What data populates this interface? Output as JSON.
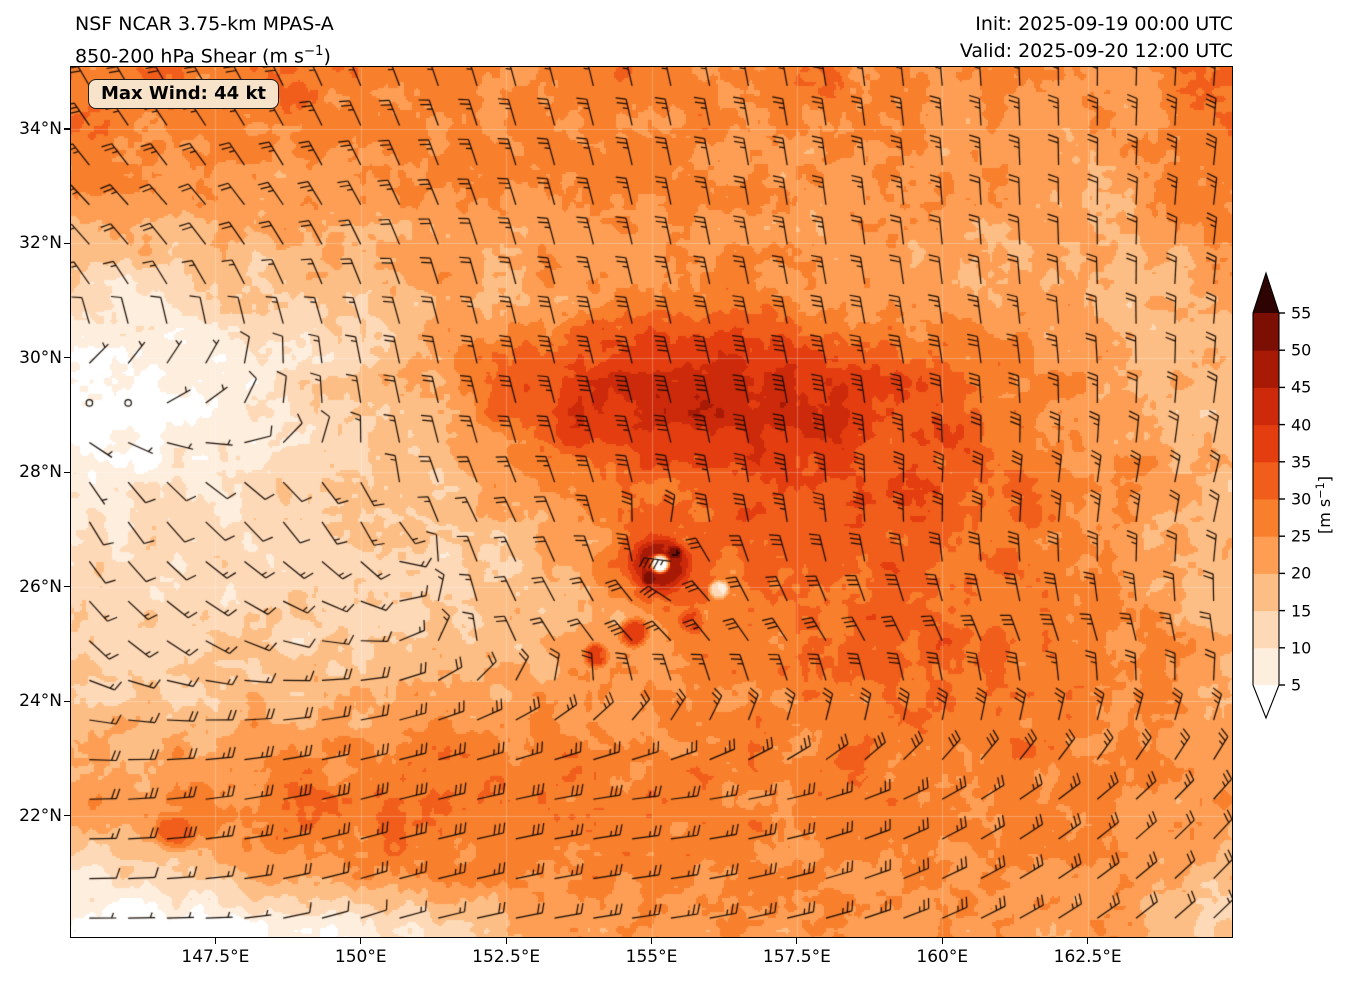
{
  "header": {
    "title_line1": "NSF NCAR 3.75-km MPAS-A",
    "title_line2_prefix": "850-200 hPa Shear (m s",
    "title_line2_sup": "−1",
    "title_line2_suffix": ")",
    "init_label": "Init: 2025-09-19 00:00 UTC",
    "valid_label": "Valid: 2025-09-20 12:00 UTC"
  },
  "badge": {
    "text": "Max Wind: 44 kt"
  },
  "chart_data": {
    "type": "heatmap",
    "subtype": "wind-shear-map-with-barbs",
    "title": "NSF NCAR 3.75-km MPAS-A 850-200 hPa Shear (m s−1)",
    "units": "m s−1",
    "init_time": "2025-09-19 00:00 UTC",
    "valid_time": "2025-09-20 12:00 UTC",
    "max_wind_kt": 44,
    "lon_range": [
      145.0,
      165.0
    ],
    "lat_range": [
      19.86,
      35.1
    ],
    "grid_on": true,
    "x_ticks": [
      {
        "label": "147.5°E",
        "lon": 147.5
      },
      {
        "label": "150°E",
        "lon": 150.0
      },
      {
        "label": "152.5°E",
        "lon": 152.5
      },
      {
        "label": "155°E",
        "lon": 155.0
      },
      {
        "label": "157.5°E",
        "lon": 157.5
      },
      {
        "label": "160°E",
        "lon": 160.0
      },
      {
        "label": "162.5°E",
        "lon": 162.5
      }
    ],
    "y_ticks": [
      {
        "label": "34°N",
        "lat": 34
      },
      {
        "label": "32°N",
        "lat": 32
      },
      {
        "label": "30°N",
        "lat": 30
      },
      {
        "label": "28°N",
        "lat": 28
      },
      {
        "label": "26°N",
        "lat": 26
      },
      {
        "label": "24°N",
        "lat": 24
      },
      {
        "label": "22°N",
        "lat": 22
      }
    ],
    "colorbar": {
      "ticks": [
        5,
        10,
        15,
        20,
        25,
        30,
        35,
        40,
        45,
        50,
        55
      ],
      "label_prefix": "[m s",
      "label_sup": "−1",
      "label_suffix": "]",
      "under_color": "#ffffff",
      "over_color": "#2e0402",
      "segment_colors": [
        "#fdeede",
        "#fdd9b8",
        "#fdbe85",
        "#fd9e54",
        "#f87f2c",
        "#f15d1b",
        "#e33d10",
        "#cc2a0a",
        "#a81a06",
        "#7c0f04"
      ],
      "extend": "both"
    },
    "shear_grid": {
      "comment": "850-200 hPa shear magnitude (m/s); rows from lat 35 to 20 step -1, cols lon 145 to 165 step 1",
      "lon_start": 145,
      "lon_step": 1,
      "lat_start": 35,
      "lat_step": -1,
      "values": [
        [
          28,
          28,
          29,
          29,
          28,
          27,
          26,
          26,
          26,
          27,
          27,
          26,
          26,
          26,
          26,
          25,
          25,
          24,
          24,
          28,
          30
        ],
        [
          28,
          27,
          27,
          26,
          26,
          26,
          26,
          25,
          26,
          26,
          26,
          26,
          25,
          25,
          25,
          24,
          24,
          23,
          23,
          27,
          29
        ],
        [
          26,
          25,
          24,
          24,
          24,
          24,
          24,
          24,
          24,
          25,
          25,
          25,
          24,
          24,
          24,
          23,
          23,
          22,
          21,
          25,
          28
        ],
        [
          20,
          19,
          18,
          19,
          20,
          21,
          22,
          22,
          23,
          23,
          24,
          24,
          23,
          23,
          22,
          22,
          21,
          20,
          19,
          22,
          26
        ],
        [
          10,
          10,
          11,
          13,
          15,
          17,
          19,
          21,
          23,
          25,
          26,
          26,
          25,
          24,
          23,
          22,
          21,
          20,
          18,
          18,
          20
        ],
        [
          4,
          4,
          6,
          9,
          12,
          16,
          20,
          26,
          32,
          36,
          38,
          39,
          38,
          36,
          33,
          30,
          27,
          24,
          21,
          19,
          18
        ],
        [
          2,
          2,
          4,
          8,
          11,
          15,
          20,
          27,
          34,
          40,
          42,
          43,
          42,
          40,
          36,
          33,
          30,
          26,
          23,
          20,
          18
        ],
        [
          6,
          7,
          8,
          10,
          12,
          14,
          17,
          21,
          26,
          30,
          33,
          35,
          36,
          36,
          34,
          33,
          30,
          26,
          23,
          21,
          18
        ],
        [
          10,
          11,
          12,
          12,
          13,
          13,
          14,
          16,
          19,
          24,
          28,
          30,
          32,
          33,
          33,
          32,
          30,
          27,
          24,
          22,
          18
        ],
        [
          12,
          13,
          13,
          13,
          13,
          13,
          14,
          15,
          17,
          22,
          26,
          28,
          29,
          31,
          32,
          32,
          30,
          28,
          25,
          22,
          19
        ],
        [
          13,
          13,
          14,
          14,
          15,
          15,
          16,
          17,
          18,
          20,
          24,
          27,
          28,
          29,
          31,
          32,
          30,
          28,
          26,
          23,
          20
        ],
        [
          15,
          16,
          17,
          18,
          19,
          20,
          21,
          22,
          22,
          23,
          24,
          25,
          26,
          27,
          29,
          30,
          29,
          27,
          26,
          24,
          21
        ],
        [
          19,
          20,
          22,
          24,
          25,
          26,
          27,
          27,
          27,
          27,
          27,
          27,
          27,
          27,
          28,
          28,
          28,
          27,
          26,
          25,
          23
        ],
        [
          22,
          24,
          26,
          28,
          29,
          29,
          29,
          29,
          28,
          28,
          27,
          27,
          27,
          27,
          27,
          27,
          26,
          26,
          25,
          24,
          23
        ],
        [
          8,
          12,
          16,
          20,
          23,
          25,
          26,
          27,
          27,
          26,
          26,
          25,
          25,
          25,
          25,
          25,
          25,
          24,
          24,
          20,
          17
        ],
        [
          2,
          2,
          2,
          3,
          5,
          8,
          12,
          16,
          20,
          23,
          24,
          24,
          24,
          24,
          24,
          24,
          24,
          23,
          23,
          18,
          14
        ]
      ]
    },
    "wind_dir_grid": {
      "comment": "shear vector components (toward, m/s) for barb directions; rows lat 35..20 step -2.5, cols lon 145..165 step 2.5",
      "lon_start": 145,
      "lon_step": 2.5,
      "lat_start": 35,
      "lat_step": -2.5,
      "u": [
        [
          10,
          10,
          8,
          6,
          5,
          4,
          2,
          0,
          -2
        ],
        [
          12,
          12,
          10,
          8,
          6,
          4,
          2,
          0,
          -3
        ],
        [
          -2,
          -2,
          3,
          8,
          10,
          8,
          5,
          2,
          -2
        ],
        [
          -2,
          -3,
          -2,
          4,
          6,
          2,
          -2,
          -4,
          -5
        ],
        [
          -3,
          -4,
          -5,
          2,
          10,
          12,
          10,
          6,
          2
        ],
        [
          -12,
          -14,
          -16,
          -18,
          -18,
          -16,
          -14,
          -12,
          -10
        ],
        [
          -2,
          -3,
          -6,
          -10,
          -14,
          -16,
          -14,
          -12,
          -10
        ]
      ],
      "v": [
        [
          -18,
          -18,
          -20,
          -22,
          -22,
          -22,
          -22,
          -24,
          -24
        ],
        [
          -12,
          -14,
          -18,
          -25,
          -28,
          -28,
          -25,
          -22,
          -22
        ],
        [
          -2,
          -4,
          -15,
          -35,
          -40,
          -38,
          -30,
          -25,
          -20
        ],
        [
          4,
          3,
          5,
          -8,
          -20,
          -25,
          -28,
          -25,
          -18
        ],
        [
          3,
          2,
          0,
          -5,
          -12,
          -18,
          -22,
          -20,
          -16
        ],
        [
          0,
          -2,
          -4,
          -4,
          -2,
          -4,
          -8,
          -10,
          -12
        ],
        [
          0,
          0,
          -2,
          -2,
          -2,
          -4,
          -6,
          -8,
          -10
        ]
      ]
    },
    "storm": {
      "center_lon": 155.15,
      "center_lat": 26.4,
      "vortex_strength": 18,
      "vortex_radius_deg": 0.9,
      "features": [
        {
          "lon": 155.15,
          "lat": 26.4,
          "r": 1.15,
          "v": 31
        },
        {
          "lon": 155.15,
          "lat": 26.4,
          "r": 0.6,
          "v": 46
        },
        {
          "lon": 154.95,
          "lat": 26.15,
          "r": 0.14,
          "v": 54
        },
        {
          "lon": 155.4,
          "lat": 26.6,
          "r": 0.13,
          "v": 54
        },
        {
          "lon": 155.15,
          "lat": 26.4,
          "r": 0.19,
          "v": 3
        },
        {
          "lon": 154.7,
          "lat": 25.2,
          "r": 0.3,
          "v": 38
        },
        {
          "lon": 155.7,
          "lat": 25.4,
          "r": 0.26,
          "v": 36
        },
        {
          "lon": 154.05,
          "lat": 24.8,
          "r": 0.25,
          "v": 34
        },
        {
          "lon": 156.15,
          "lat": 25.95,
          "r": 0.2,
          "v": 10
        },
        {
          "lon": 151.5,
          "lat": 26.3,
          "r": 0.5,
          "v": 10
        },
        {
          "lon": 148.9,
          "lat": 25.1,
          "r": 0.45,
          "v": 11
        },
        {
          "lon": 148.5,
          "lat": 34.8,
          "r": 0.8,
          "v": 30
        },
        {
          "lon": 157.9,
          "lat": 34.9,
          "r": 0.55,
          "v": 30
        },
        {
          "lon": 164.8,
          "lat": 33.8,
          "r": 0.8,
          "v": 30
        },
        {
          "lon": 146.8,
          "lat": 21.7,
          "r": 0.4,
          "v": 32
        },
        {
          "lon": 148.6,
          "lat": 21.6,
          "r": 0.35,
          "v": 31
        },
        {
          "lon": 150.6,
          "lat": 21.5,
          "r": 0.35,
          "v": 31
        },
        {
          "lon": 158.5,
          "lat": 22.8,
          "r": 0.45,
          "v": 31
        }
      ]
    }
  }
}
